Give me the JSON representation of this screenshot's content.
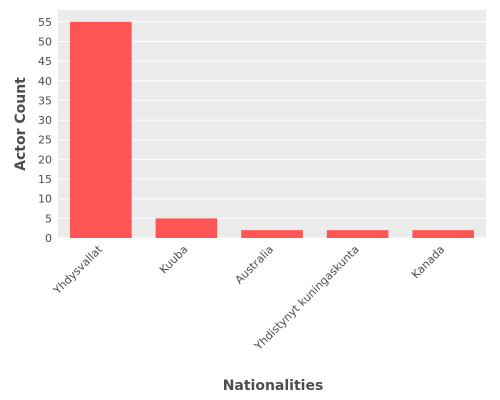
{
  "chart_data": {
    "type": "bar",
    "categories": [
      "Yhdysvallat",
      "Kuuba",
      "Australia",
      "Yhdistynyt kuningaskunta",
      "Kanada"
    ],
    "values": [
      55,
      5,
      2,
      2,
      2
    ],
    "xlabel": "Nationalities",
    "ylabel": "Actor Count",
    "ylim": [
      0,
      58
    ],
    "yticks": [
      0,
      5,
      10,
      15,
      20,
      25,
      30,
      35,
      40,
      45,
      50,
      55
    ],
    "grid": true,
    "colors": {
      "bar": "#ff5555",
      "panel": "#ebebeb",
      "grid": "#ffffff"
    }
  }
}
